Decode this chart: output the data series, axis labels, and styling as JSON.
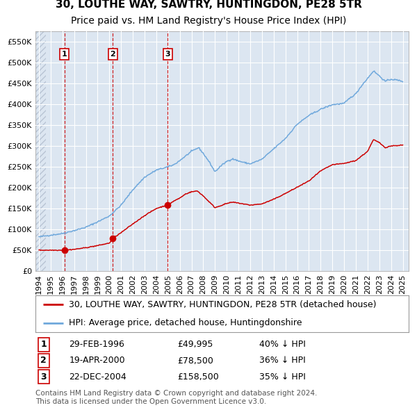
{
  "title": "30, LOUTHE WAY, SAWTRY, HUNTINGDON, PE28 5TR",
  "subtitle": "Price paid vs. HM Land Registry's House Price Index (HPI)",
  "xlim": [
    1993.7,
    2025.5
  ],
  "ylim": [
    0,
    575000
  ],
  "yticks": [
    0,
    50000,
    100000,
    150000,
    200000,
    250000,
    300000,
    350000,
    400000,
    450000,
    500000,
    550000
  ],
  "ytick_labels": [
    "£0",
    "£50K",
    "£100K",
    "£150K",
    "£200K",
    "£250K",
    "£300K",
    "£350K",
    "£400K",
    "£450K",
    "£500K",
    "£550K"
  ],
  "xticks": [
    1994,
    1995,
    1996,
    1997,
    1998,
    1999,
    2000,
    2001,
    2002,
    2003,
    2004,
    2005,
    2006,
    2007,
    2008,
    2009,
    2010,
    2011,
    2012,
    2013,
    2014,
    2015,
    2016,
    2017,
    2018,
    2019,
    2020,
    2021,
    2022,
    2023,
    2024,
    2025
  ],
  "hpi_color": "#6fa8dc",
  "price_color": "#cc0000",
  "sale_marker_color": "#cc0000",
  "bg_color": "#dce6f1",
  "hatch_color": "#b8c4d4",
  "grid_color": "#ffffff",
  "vline_color": "#cc0000",
  "sale_points": [
    {
      "year": 1996.16,
      "price": 49995,
      "label": "1"
    },
    {
      "year": 2000.3,
      "price": 78500,
      "label": "2"
    },
    {
      "year": 2004.97,
      "price": 158500,
      "label": "3"
    }
  ],
  "legend_line1": "30, LOUTHE WAY, SAWTRY, HUNTINGDON, PE28 5TR (detached house)",
  "legend_line2": "HPI: Average price, detached house, Huntingdonshire",
  "table_entries": [
    {
      "num": "1",
      "date": "29-FEB-1996",
      "price": "£49,995",
      "note": "40% ↓ HPI"
    },
    {
      "num": "2",
      "date": "19-APR-2000",
      "price": "£78,500",
      "note": "36% ↓ HPI"
    },
    {
      "num": "3",
      "date": "22-DEC-2004",
      "price": "£158,500",
      "note": "35% ↓ HPI"
    }
  ],
  "footnote": "Contains HM Land Registry data © Crown copyright and database right 2024.\nThis data is licensed under the Open Government Licence v3.0.",
  "title_fontsize": 11,
  "subtitle_fontsize": 10,
  "tick_fontsize": 8,
  "legend_fontsize": 9,
  "table_fontsize": 9,
  "footnote_fontsize": 7.5
}
